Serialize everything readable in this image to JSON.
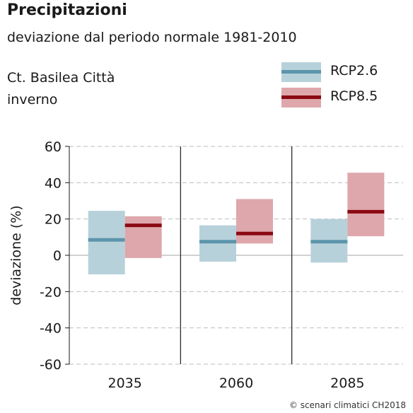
{
  "title": "Precipitazioni",
  "subtitle": "deviazione dal periodo normale 1981-2010",
  "location": "Ct. Basilea Città",
  "season": "inverno",
  "credit": "© scenari climatici CH2018",
  "legend": [
    {
      "name": "RCP2.6",
      "box_color": "#b7d1db",
      "line_color": "#5b95ab"
    },
    {
      "name": "RCP8.5",
      "box_color": "#dea7ac",
      "line_color": "#8b0a12"
    }
  ],
  "chart_data": {
    "type": "bar",
    "ylabel": "deviazione (%)",
    "ylim": [
      -60,
      60
    ],
    "yticks": [
      60,
      40,
      20,
      0,
      -20,
      -40,
      -60
    ],
    "categories": [
      "2035",
      "2060",
      "2085"
    ],
    "series": [
      {
        "name": "RCP2.6",
        "low": [
          -10.5,
          -3.5,
          -4
        ],
        "median": [
          8.5,
          7.5,
          7.5
        ],
        "high": [
          24.5,
          16.5,
          20
        ]
      },
      {
        "name": "RCP8.5",
        "low": [
          -1.5,
          6.5,
          10.5
        ],
        "median": [
          16.5,
          12,
          24
        ],
        "high": [
          21.5,
          31,
          45.5
        ]
      }
    ],
    "grid": true
  }
}
